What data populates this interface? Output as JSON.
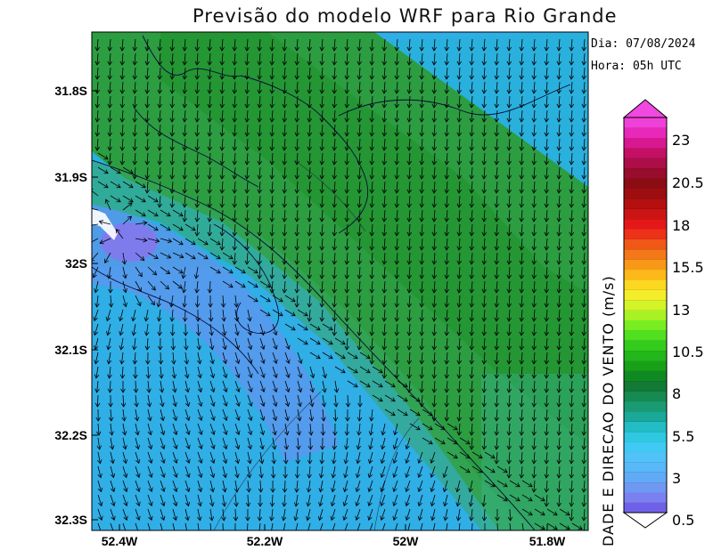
{
  "title": "Previsão do modelo WRF para Rio Grande",
  "info": {
    "date": "Dia: 07/08/2024",
    "time": "Hora: 05h UTC"
  },
  "map": {
    "lat_ticks": [
      "31.8S",
      "31.9S",
      "32S",
      "32.1S",
      "32.2S",
      "32.3S"
    ],
    "lon_ticks": [
      "52.4W",
      "52.2W",
      "52W",
      "51.8W"
    ]
  },
  "colorbar": {
    "title": "DADE E DIRECAO DO VENTO (m/s)",
    "labels": [
      "23",
      "20.5",
      "18",
      "15.5",
      "13",
      "10.5",
      "8",
      "5.5",
      "3",
      "0.5"
    ],
    "colors": [
      "#7060e8",
      "#7b80f0",
      "#6f98f2",
      "#60aaf6",
      "#58b8f8",
      "#50c2f8",
      "#3ecaf2",
      "#2ec8e0",
      "#22bcc4",
      "#1aa898",
      "#1a9a72",
      "#168a50",
      "#127a34",
      "#0f8a22",
      "#18a018",
      "#22b61a",
      "#34cc1c",
      "#50e020",
      "#78ee22",
      "#a8f224",
      "#d4f428",
      "#f4ee2a",
      "#fcd820",
      "#fcb818",
      "#f89818",
      "#f47818",
      "#f05818",
      "#ec3218",
      "#e41818",
      "#cc1414",
      "#b41010",
      "#9c0e10",
      "#8c0c14",
      "#980c2c",
      "#ac0e48",
      "#c41064",
      "#d81890",
      "#e828b8",
      "#f040d8"
    ]
  }
}
